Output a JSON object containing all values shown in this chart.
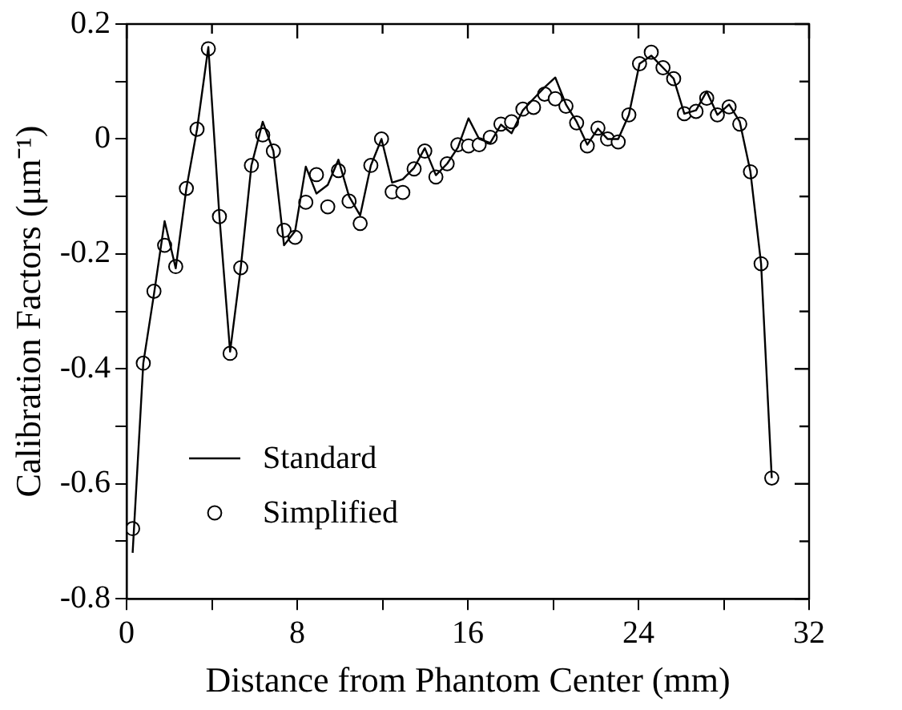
{
  "chart_data": {
    "type": "line",
    "xlabel": "Distance from Phantom Center (mm)",
    "ylabel": "Calibration Factors (μm⁻¹)",
    "x": [
      0.28,
      0.78,
      1.28,
      1.78,
      2.3,
      2.8,
      3.3,
      3.83,
      4.35,
      4.85,
      5.35,
      5.85,
      6.38,
      6.88,
      7.38,
      7.9,
      8.4,
      8.9,
      9.43,
      9.93,
      10.43,
      10.95,
      11.45,
      11.95,
      12.45,
      12.95,
      13.48,
      13.98,
      14.5,
      15.03,
      15.53,
      16.03,
      16.53,
      17.05,
      17.55,
      18.05,
      18.58,
      19.08,
      19.6,
      20.1,
      20.6,
      21.1,
      21.6,
      22.1,
      22.55,
      23.05,
      23.55,
      24.05,
      24.6,
      25.15,
      25.65,
      26.15,
      26.7,
      27.2,
      27.7,
      28.25,
      28.75,
      29.25,
      29.75,
      30.25
    ],
    "series": [
      {
        "name": "Standard",
        "color": "#000000",
        "marker": "none",
        "values": [
          -0.72,
          -0.39,
          -0.27,
          -0.143,
          -0.225,
          -0.086,
          0.017,
          0.16,
          -0.135,
          -0.37,
          -0.224,
          -0.046,
          0.03,
          -0.021,
          -0.185,
          -0.16,
          -0.048,
          -0.095,
          -0.08,
          -0.036,
          -0.1,
          -0.133,
          -0.046,
          0.0,
          -0.076,
          -0.07,
          -0.05,
          -0.016,
          -0.063,
          -0.043,
          -0.015,
          0.036,
          0.0,
          -0.007,
          0.025,
          0.01,
          0.05,
          0.07,
          0.09,
          0.107,
          0.06,
          0.03,
          -0.01,
          0.018,
          0.0,
          0.0,
          0.042,
          0.131,
          0.145,
          0.124,
          0.105,
          0.044,
          0.05,
          0.083,
          0.042,
          0.06,
          0.03,
          -0.057,
          -0.217,
          -0.59
        ]
      },
      {
        "name": "Simplified",
        "type": "scatter",
        "color": "#000000",
        "marker": "circle",
        "values": [
          -0.678,
          -0.39,
          -0.265,
          -0.185,
          -0.222,
          -0.086,
          0.017,
          0.157,
          -0.135,
          -0.373,
          -0.224,
          -0.046,
          0.007,
          -0.021,
          -0.159,
          -0.171,
          -0.11,
          -0.062,
          -0.118,
          -0.055,
          -0.108,
          -0.147,
          -0.046,
          0.0,
          -0.092,
          -0.093,
          -0.052,
          -0.021,
          -0.066,
          -0.043,
          -0.01,
          -0.012,
          -0.01,
          0.003,
          0.026,
          0.03,
          0.052,
          0.055,
          0.078,
          0.07,
          0.057,
          0.028,
          -0.012,
          0.019,
          0.0,
          -0.005,
          0.042,
          0.131,
          0.151,
          0.124,
          0.105,
          0.044,
          0.048,
          0.071,
          0.042,
          0.056,
          0.026,
          -0.057,
          -0.217,
          -0.59
        ]
      }
    ],
    "xlim": [
      0,
      32
    ],
    "xticks": [
      0,
      {
        "value": 4,
        "label": null
      },
      8,
      {
        "value": 12,
        "label": null
      },
      16,
      {
        "value": 20,
        "label": null
      },
      24,
      {
        "value": 28,
        "label": null
      },
      32
    ],
    "ylim": [
      -0.8,
      0.2
    ],
    "yticks": [
      -0.8,
      {
        "value": -0.7,
        "label": null
      },
      -0.6,
      {
        "value": -0.5,
        "label": null
      },
      -0.4,
      {
        "value": -0.3,
        "label": null
      },
      -0.2,
      {
        "value": -0.1,
        "label": null
      },
      0,
      {
        "value": 0.1,
        "label": null
      },
      0.2
    ],
    "grid": false,
    "legend": "bottom left"
  }
}
